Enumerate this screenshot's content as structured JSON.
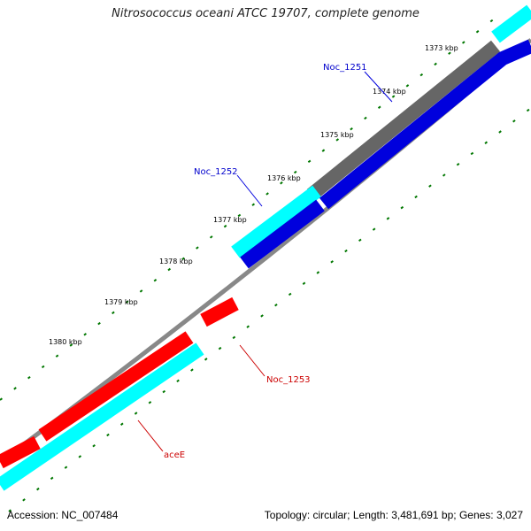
{
  "title": "Nitrosococcus oceani ATCC 19707, complete genome",
  "footer": {
    "accession": "Accession: NC_007484",
    "topology": "Topology: circular; Length: 3,481,691 bp; Genes: 3,027"
  },
  "ticks": [
    "1373 kbp",
    "1374 kbp",
    "1375 kbp",
    "1376 kbp",
    "1377 kbp",
    "1378 kbp",
    "1379 kbp",
    "1380 kbp"
  ],
  "genes": [
    {
      "name": "Noc_1251",
      "color": "#0000cc"
    },
    {
      "name": "Noc_1252",
      "color": "#0000cc"
    },
    {
      "name": "Noc_1253",
      "color": "#cc0000"
    },
    {
      "name": "aceE",
      "color": "#cc0000"
    }
  ],
  "colors": {
    "backbone": "#808080",
    "tick": "#007700",
    "cds_forward": "#0000dd",
    "cds_reverse": "#ff0000",
    "rna_cyan": "#00ffff",
    "gene_gray": "#666666"
  }
}
